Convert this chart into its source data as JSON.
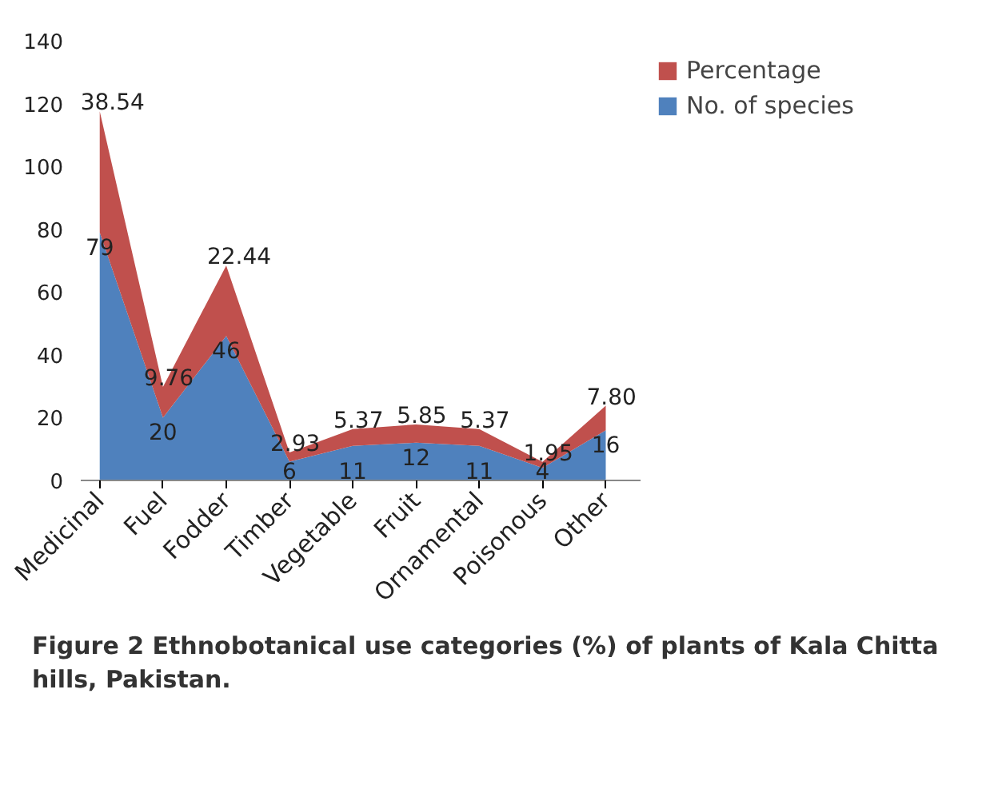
{
  "chart_data": {
    "type": "area",
    "stacked": true,
    "title": "Figure 2 Ethnobotanical use categories (%) of plants of Kala Chitta hills, Pakistan.",
    "categories": [
      "Medicinal",
      "Fuel",
      "Fodder",
      "Timber",
      "Vegetable",
      "Fruit",
      "Ornamental",
      "Poisonous",
      "Other"
    ],
    "series": [
      {
        "name": "No. of species",
        "color": "#4f81bd",
        "values": [
          79,
          20,
          46,
          6,
          11,
          12,
          11,
          4,
          16
        ],
        "value_labels": [
          "79",
          "20",
          "46",
          "6",
          "11",
          "12",
          "11",
          "4",
          "16"
        ]
      },
      {
        "name": "Percentage",
        "color": "#c0504d",
        "values": [
          38.54,
          9.76,
          22.44,
          2.93,
          5.37,
          5.85,
          5.37,
          1.95,
          7.8
        ],
        "value_labels": [
          "38.54",
          "9.76",
          "22.44",
          "2.93",
          "5.37",
          "5.85",
          "5.37",
          "1.95",
          "7.80"
        ]
      }
    ],
    "ylim": [
      0,
      140
    ],
    "yticks": [
      0,
      20,
      40,
      60,
      80,
      100,
      120,
      140
    ],
    "grid": false,
    "legend": "right"
  }
}
